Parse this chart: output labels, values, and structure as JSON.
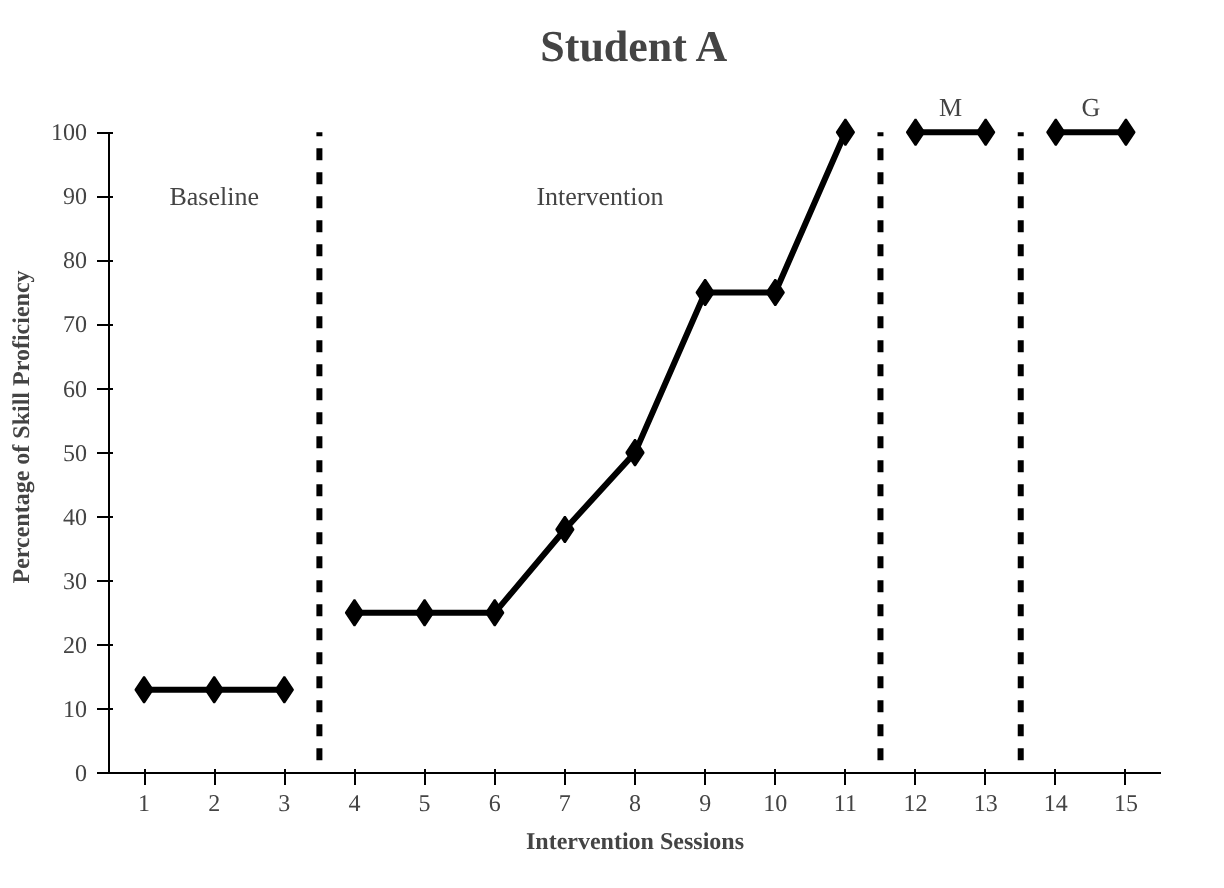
{
  "chart_data": {
    "type": "line",
    "title": "Student A",
    "xlabel": "Intervention Sessions",
    "ylabel": "Percentage of Skill Proficiency",
    "xlim": [
      0.5,
      15.5
    ],
    "xticks": [
      1,
      2,
      3,
      4,
      5,
      6,
      7,
      8,
      9,
      10,
      11,
      12,
      13,
      14,
      15
    ],
    "ylim": [
      0,
      100
    ],
    "yticks": [
      0,
      10,
      20,
      30,
      40,
      50,
      60,
      70,
      80,
      90,
      100
    ],
    "grid": false,
    "marker": "diamond",
    "line_style": "solid",
    "series": [
      {
        "color": "#000000",
        "x": [
          1,
          2,
          3
        ],
        "values": [
          13,
          13,
          13
        ]
      },
      {
        "color": "#000000",
        "x": [
          4,
          5,
          6,
          7,
          8,
          9,
          10,
          11
        ],
        "values": [
          25,
          25,
          25,
          38,
          50,
          75,
          75,
          100
        ]
      },
      {
        "color": "#000000",
        "x": [
          12,
          13
        ],
        "values": [
          100,
          100
        ]
      },
      {
        "color": "#000000",
        "x": [
          14,
          15
        ],
        "values": [
          100,
          100
        ]
      }
    ],
    "ref_lines": [
      {
        "axis": "x",
        "value": 3.5,
        "color": "#000000",
        "line_style": "dashed"
      },
      {
        "axis": "x",
        "value": 11.5,
        "color": "#000000",
        "line_style": "dashed"
      },
      {
        "axis": "x",
        "value": 13.5,
        "color": "#000000",
        "line_style": "dashed"
      }
    ],
    "annotations": [
      "Baseline",
      "Intervention",
      "M",
      "G"
    ]
  }
}
